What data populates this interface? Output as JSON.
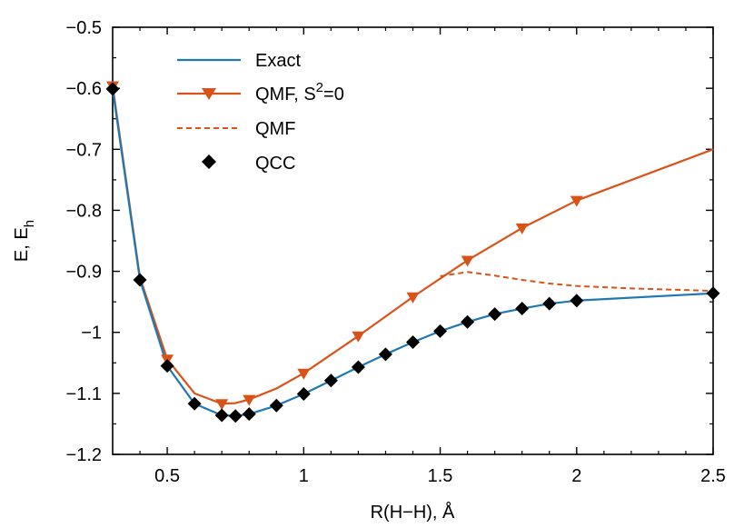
{
  "chart_data": {
    "type": "line",
    "xlabel": "R(H−H), Å",
    "ylabel_main": "E, E",
    "ylabel_sub": "h",
    "xlim": [
      0.3,
      2.5
    ],
    "ylim": [
      -1.2,
      -0.5
    ],
    "x_ticks": [
      0.5,
      1,
      1.5,
      2,
      2.5
    ],
    "x_tick_labels": [
      "0.5",
      "1",
      "1.5",
      "2",
      "2.5"
    ],
    "y_ticks": [
      -1.2,
      -1.1,
      -1.0,
      -0.9,
      -0.8,
      -0.7,
      -0.6,
      -0.5
    ],
    "y_tick_labels": [
      "−1.2",
      "−1.1",
      "−1",
      "−0.9",
      "−0.8",
      "−0.7",
      "−0.6",
      "−0.5"
    ],
    "grid": false,
    "legend_position": "top-left",
    "series": [
      {
        "name": "Exact",
        "style": "solid",
        "marker": "none",
        "color": "#1f77b4",
        "x": [
          0.3,
          0.4,
          0.5,
          0.6,
          0.7,
          0.75,
          0.8,
          0.9,
          1.0,
          1.1,
          1.2,
          1.3,
          1.4,
          1.5,
          1.6,
          1.7,
          1.8,
          1.9,
          2.0,
          2.5
        ],
        "y": [
          -0.601,
          -0.914,
          -1.055,
          -1.117,
          -1.136,
          -1.137,
          -1.134,
          -1.12,
          -1.101,
          -1.079,
          -1.057,
          -1.036,
          -1.016,
          -0.998,
          -0.983,
          -0.97,
          -0.961,
          -0.953,
          -0.948,
          -0.936
        ]
      },
      {
        "name": "QMF, S²=0",
        "legend_main": "QMF, S",
        "legend_sup": "2",
        "legend_tail": "=0",
        "style": "solid",
        "marker": "triangle-down",
        "color": "#d95319",
        "x": [
          0.3,
          0.4,
          0.5,
          0.6,
          0.7,
          0.75,
          0.8,
          0.9,
          1.0,
          1.2,
          1.4,
          1.6,
          1.8,
          2.0,
          2.5
        ],
        "marker_x": [
          0.3,
          0.5,
          0.7,
          0.8,
          1.0,
          1.2,
          1.4,
          1.6,
          1.8,
          2.0
        ],
        "y": [
          -0.596,
          -0.91,
          -1.044,
          -1.1,
          -1.117,
          -1.116,
          -1.11,
          -1.092,
          -1.067,
          -1.006,
          -0.942,
          -0.882,
          -0.829,
          -0.784,
          -0.7
        ]
      },
      {
        "name": "QMF",
        "style": "dashed",
        "marker": "none",
        "color": "#d95319",
        "x": [
          1.5,
          1.6,
          1.7,
          1.8,
          1.9,
          2.0,
          2.2,
          2.5
        ],
        "y": [
          -0.908,
          -0.901,
          -0.907,
          -0.914,
          -0.92,
          -0.924,
          -0.928,
          -0.932
        ]
      },
      {
        "name": "QCC",
        "style": "none",
        "marker": "diamond",
        "color": "#000000",
        "x": [
          0.3,
          0.4,
          0.5,
          0.6,
          0.7,
          0.75,
          0.8,
          0.9,
          1.0,
          1.1,
          1.2,
          1.3,
          1.4,
          1.5,
          1.6,
          1.7,
          1.8,
          1.9,
          2.0,
          2.5
        ],
        "y": [
          -0.601,
          -0.914,
          -1.055,
          -1.117,
          -1.136,
          -1.137,
          -1.134,
          -1.12,
          -1.101,
          -1.079,
          -1.057,
          -1.036,
          -1.016,
          -0.998,
          -0.983,
          -0.97,
          -0.961,
          -0.953,
          -0.948,
          -0.936
        ]
      }
    ]
  }
}
